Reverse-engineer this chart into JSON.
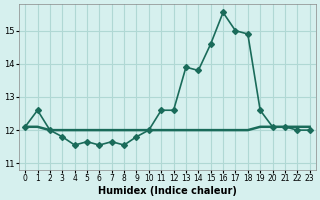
{
  "xlabel": "Humidex (Indice chaleur)",
  "background_color": "#d6f0ee",
  "grid_color": "#b0d8d4",
  "line_color": "#1a6b5a",
  "hours": [
    0,
    1,
    2,
    3,
    4,
    5,
    6,
    7,
    8,
    9,
    10,
    11,
    12,
    13,
    14,
    15,
    16,
    17,
    18,
    19,
    20,
    21,
    22,
    23
  ],
  "humidex": [
    12.1,
    12.6,
    12.0,
    11.8,
    11.55,
    11.65,
    11.55,
    11.65,
    11.55,
    11.8,
    12.0,
    12.6,
    12.6,
    13.9,
    13.8,
    14.6,
    15.55,
    15.0,
    14.9,
    12.6,
    12.1,
    12.1,
    12.0,
    12.0
  ],
  "flat_line": [
    12.1,
    12.1,
    12.0,
    12.0,
    12.0,
    12.0,
    12.0,
    12.0,
    12.0,
    12.0,
    12.0,
    12.0,
    12.0,
    12.0,
    12.0,
    12.0,
    12.0,
    12.0,
    12.0,
    12.1,
    12.1,
    12.1,
    12.1,
    12.1
  ],
  "ylim": [
    10.8,
    15.8
  ],
  "yticks": [
    11,
    12,
    13,
    14,
    15
  ],
  "xlim": [
    -0.5,
    23.5
  ],
  "marker": "D",
  "marker_size": 3,
  "linewidth": 1.2
}
